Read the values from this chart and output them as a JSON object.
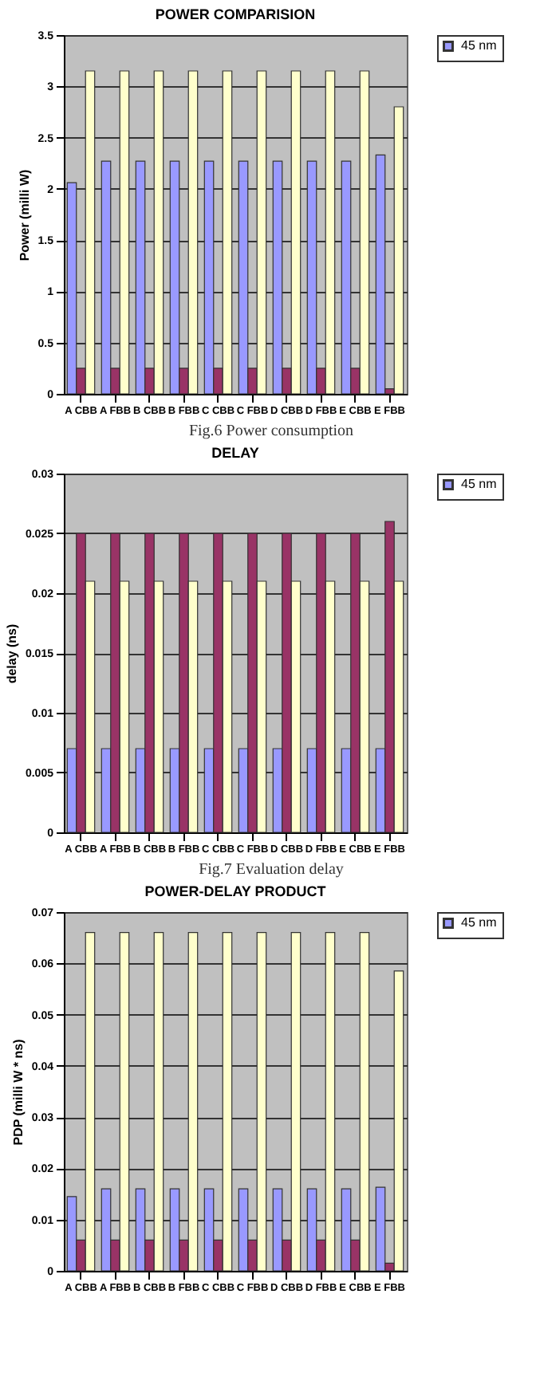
{
  "chart_data": [
    {
      "type": "bar",
      "title": "POWER COMPARISION",
      "ylabel": "Power (milli W)",
      "categories": [
        "A CBB",
        "A FBB",
        "B CBB",
        "B FBB",
        "C CBB",
        "C FBB",
        "D CBB",
        "D FBB",
        "E CBB",
        "E FBB"
      ],
      "series": [
        {
          "name": "45 nm",
          "color": "#9999ff",
          "values": [
            2.06,
            2.27,
            2.27,
            2.27,
            2.27,
            2.27,
            2.27,
            2.27,
            2.27,
            2.33
          ]
        },
        {
          "color": "#993366",
          "values": [
            0.25,
            0.25,
            0.25,
            0.25,
            0.25,
            0.25,
            0.25,
            0.25,
            0.25,
            0.05
          ]
        },
        {
          "color": "#ffffcc",
          "values": [
            3.15,
            3.15,
            3.15,
            3.15,
            3.15,
            3.15,
            3.15,
            3.15,
            3.15,
            2.8
          ]
        }
      ],
      "ylim": [
        0,
        3.5
      ],
      "yticks": [
        0,
        0.5,
        1,
        1.5,
        2,
        2.5,
        3,
        3.5
      ],
      "grid": "y",
      "legend": "right",
      "annotations": [
        "Fig.6 Power consumption"
      ]
    },
    {
      "type": "bar",
      "title": "DELAY",
      "ylabel": "delay (ns)",
      "categories": [
        "A CBB",
        "A FBB",
        "B CBB",
        "B FBB",
        "C CBB",
        "C FBB",
        "D CBB",
        "D FBB",
        "E CBB",
        "E FBB"
      ],
      "series": [
        {
          "name": "45 nm",
          "color": "#9999ff",
          "values": [
            0.007,
            0.007,
            0.007,
            0.007,
            0.007,
            0.007,
            0.007,
            0.007,
            0.007,
            0.007
          ]
        },
        {
          "color": "#993366",
          "values": [
            0.025,
            0.025,
            0.025,
            0.025,
            0.025,
            0.025,
            0.025,
            0.025,
            0.025,
            0.026
          ]
        },
        {
          "color": "#ffffcc",
          "values": [
            0.021,
            0.021,
            0.021,
            0.021,
            0.021,
            0.021,
            0.021,
            0.021,
            0.021,
            0.021
          ]
        }
      ],
      "ylim": [
        0,
        0.03
      ],
      "yticks": [
        0,
        0.005,
        0.01,
        0.015,
        0.02,
        0.025,
        0.03
      ],
      "grid": "y",
      "legend": "right",
      "annotations": [
        "Fig.7 Evaluation delay"
      ]
    },
    {
      "type": "bar",
      "title": "POWER-DELAY PRODUCT",
      "ylabel": "PDP (milli W * ns)",
      "categories": [
        "A CBB",
        "A FBB",
        "B CBB",
        "B FBB",
        "C CBB",
        "C FBB",
        "D CBB",
        "D FBB",
        "E CBB",
        "E FBB"
      ],
      "series": [
        {
          "name": "45 nm",
          "color": "#9999ff",
          "values": [
            0.0145,
            0.016,
            0.016,
            0.016,
            0.016,
            0.016,
            0.016,
            0.016,
            0.016,
            0.0163
          ]
        },
        {
          "color": "#993366",
          "values": [
            0.006,
            0.006,
            0.006,
            0.006,
            0.006,
            0.006,
            0.006,
            0.006,
            0.006,
            0.0015
          ]
        },
        {
          "color": "#ffffcc",
          "values": [
            0.066,
            0.066,
            0.066,
            0.066,
            0.066,
            0.066,
            0.066,
            0.066,
            0.066,
            0.0585
          ]
        }
      ],
      "ylim": [
        0,
        0.07
      ],
      "yticks": [
        0,
        0.01,
        0.02,
        0.03,
        0.04,
        0.05,
        0.06,
        0.07
      ],
      "grid": "y",
      "legend": "right"
    }
  ]
}
